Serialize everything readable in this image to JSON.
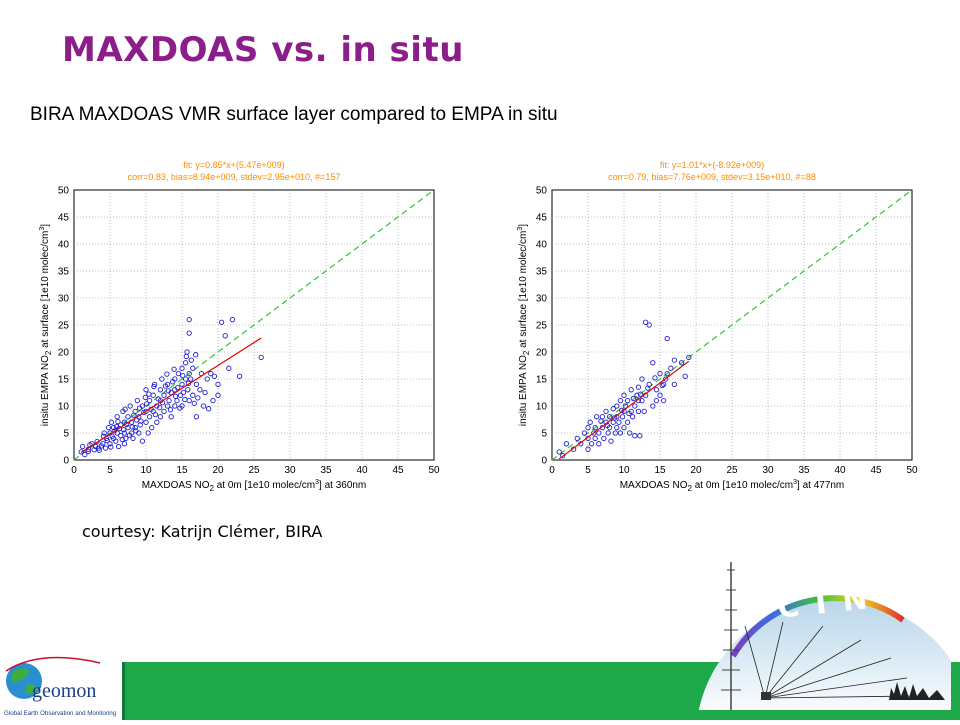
{
  "slide": {
    "title": "MAXDOAS vs. in situ",
    "subtitle": "BIRA MAXDOAS VMR surface layer compared to EMPA in situ",
    "courtesy": "courtesy: Katrijn Clémer, BIRA"
  },
  "logos": {
    "left_text": "geomon",
    "left_caption": "Global Earth Observation and Monitoring",
    "right_text": "CINDI"
  },
  "colors": {
    "title": "#8b1e8b",
    "points": "#2020d0",
    "fit_line": "#e00000",
    "one_to_one": "#40c040",
    "fit_text": "#ff8c00",
    "footer": "#1ea84a"
  },
  "chart_data": [
    {
      "type": "scatter",
      "fit_label": "fit: y=0.85*x+(5.47e+009)",
      "stats_label": "corr=0.83, bias=8.94e+009, stdev=2.95e+010, #=157",
      "xlabel": {
        "pre": "MAXDOAS NO",
        "sub": "2",
        "mid": " at 0m [1e10 molec/cm",
        "sup": "3",
        "post": "] at 360nm"
      },
      "ylabel": {
        "pre": "insitu EMPA NO",
        "sub": "2",
        "mid": " at surface [1e10 molec/cm",
        "sup": "3",
        "post": "]"
      },
      "xlim": [
        0,
        50
      ],
      "ylim": [
        0,
        50
      ],
      "xticks": [
        "0",
        "5",
        "10",
        "15",
        "20",
        "25",
        "30",
        "35",
        "40",
        "45",
        "50"
      ],
      "yticks": [
        "0",
        "5",
        "10",
        "15",
        "20",
        "25",
        "30",
        "35",
        "40",
        "45",
        "50"
      ],
      "grid": true,
      "one_to_one": [
        [
          0,
          0
        ],
        [
          50,
          50
        ]
      ],
      "fit_line": [
        [
          1,
          1.4
        ],
        [
          26,
          22.6
        ]
      ],
      "points": [
        [
          1,
          1.5
        ],
        [
          1.2,
          2.5
        ],
        [
          1.5,
          1
        ],
        [
          2,
          2
        ],
        [
          2.5,
          3
        ],
        [
          3,
          2.5
        ],
        [
          3.5,
          1.8
        ],
        [
          4,
          3
        ],
        [
          4.2,
          5
        ],
        [
          4.5,
          4
        ],
        [
          4.8,
          6
        ],
        [
          5,
          3
        ],
        [
          5,
          5
        ],
        [
          5.2,
          7
        ],
        [
          5.5,
          4
        ],
        [
          5.5,
          6
        ],
        [
          5.8,
          3.5
        ],
        [
          6,
          5
        ],
        [
          6,
          8
        ],
        [
          6.2,
          2.5
        ],
        [
          6.5,
          4.5
        ],
        [
          6.5,
          6.5
        ],
        [
          6.8,
          9
        ],
        [
          7,
          3
        ],
        [
          7,
          5
        ],
        [
          7,
          7
        ],
        [
          7.2,
          4
        ],
        [
          7.5,
          6
        ],
        [
          7.5,
          8
        ],
        [
          7.8,
          10
        ],
        [
          8,
          5
        ],
        [
          8,
          7
        ],
        [
          8.2,
          4
        ],
        [
          8.5,
          6
        ],
        [
          8.5,
          9
        ],
        [
          8.8,
          11
        ],
        [
          9,
          5
        ],
        [
          9,
          8
        ],
        [
          9.2,
          6.5
        ],
        [
          9.5,
          10
        ],
        [
          9.5,
          3.5
        ],
        [
          10,
          7
        ],
        [
          10,
          9
        ],
        [
          10,
          13
        ],
        [
          10.3,
          5
        ],
        [
          10.5,
          8
        ],
        [
          10.5,
          11
        ],
        [
          10.8,
          6
        ],
        [
          11,
          9
        ],
        [
          11,
          12
        ],
        [
          11.2,
          14
        ],
        [
          11.5,
          7
        ],
        [
          11.5,
          10
        ],
        [
          12,
          8
        ],
        [
          12,
          11
        ],
        [
          12,
          13
        ],
        [
          12.2,
          15
        ],
        [
          12.5,
          9
        ],
        [
          12.5,
          12
        ],
        [
          13,
          10
        ],
        [
          13,
          14
        ],
        [
          13.2,
          11
        ],
        [
          13.5,
          12.5
        ],
        [
          13.5,
          8
        ],
        [
          14,
          10
        ],
        [
          14,
          13
        ],
        [
          14,
          15
        ],
        [
          14.3,
          11
        ],
        [
          14.5,
          16
        ],
        [
          14.8,
          12
        ],
        [
          15,
          10
        ],
        [
          15,
          14
        ],
        [
          15,
          17
        ],
        [
          15.2,
          12.5
        ],
        [
          15.5,
          15
        ],
        [
          15.5,
          18
        ],
        [
          15.7,
          20
        ],
        [
          15.8,
          13
        ],
        [
          16,
          11
        ],
        [
          16,
          16
        ],
        [
          16,
          23.5
        ],
        [
          16,
          26
        ],
        [
          16.2,
          15
        ],
        [
          16.5,
          12
        ],
        [
          16.5,
          17
        ],
        [
          17,
          14
        ],
        [
          17,
          8
        ],
        [
          17.5,
          13
        ],
        [
          18,
          10
        ],
        [
          18.5,
          15
        ],
        [
          19,
          16
        ],
        [
          19.5,
          15.5
        ],
        [
          20,
          12
        ],
        [
          20,
          14
        ],
        [
          20.5,
          25.5
        ],
        [
          21,
          23
        ],
        [
          21.5,
          17
        ],
        [
          22,
          26
        ],
        [
          23,
          15.5
        ],
        [
          26,
          19
        ],
        [
          2,
          1.6
        ],
        [
          2.8,
          1.9
        ],
        [
          3.2,
          3.4
        ],
        [
          3.8,
          2.6
        ],
        [
          4.4,
          2.2
        ],
        [
          4.6,
          3.6
        ],
        [
          5.3,
          4.4
        ],
        [
          5.6,
          5.4
        ],
        [
          5.9,
          6.2
        ],
        [
          6.3,
          5.8
        ],
        [
          6.7,
          3.8
        ],
        [
          6.9,
          5.6
        ],
        [
          7.3,
          6.6
        ],
        [
          7.7,
          4.6
        ],
        [
          8.1,
          6.1
        ],
        [
          8.3,
          8.3
        ],
        [
          8.7,
          7.4
        ],
        [
          9.1,
          9.6
        ],
        [
          9.3,
          7.2
        ],
        [
          9.7,
          8.8
        ],
        [
          10.1,
          10.4
        ],
        [
          10.4,
          12.2
        ],
        [
          10.7,
          9.4
        ],
        [
          11.3,
          8.4
        ],
        [
          11.7,
          11.3
        ],
        [
          11.9,
          9.7
        ],
        [
          12.3,
          10.6
        ],
        [
          12.7,
          13.7
        ],
        [
          13.1,
          12.8
        ],
        [
          13.4,
          9.3
        ],
        [
          13.7,
          14.5
        ],
        [
          14.1,
          11.8
        ],
        [
          14.4,
          13.4
        ],
        [
          14.7,
          9.6
        ],
        [
          15.1,
          15.6
        ],
        [
          15.4,
          11.2
        ],
        [
          15.6,
          19.2
        ],
        [
          15.9,
          14.2
        ],
        [
          16.3,
          18.5
        ],
        [
          16.7,
          10.5
        ],
        [
          17.2,
          11.5
        ],
        [
          17.7,
          16
        ],
        [
          18.2,
          12.5
        ],
        [
          18.7,
          9.5
        ],
        [
          19.3,
          11
        ],
        [
          2.2,
          2.8
        ],
        [
          3.4,
          2.2
        ],
        [
          4.1,
          4.4
        ],
        [
          5.1,
          2.4
        ],
        [
          6.1,
          7.1
        ],
        [
          7.1,
          9.4
        ],
        [
          8.6,
          5.4
        ],
        [
          9.9,
          11.6
        ],
        [
          11.1,
          13.6
        ],
        [
          12.9,
          15.9
        ],
        [
          13.9,
          16.8
        ],
        [
          16.9,
          19.5
        ]
      ]
    },
    {
      "type": "scatter",
      "fit_label": "fit: y=1.01*x+(-8.92e+009)",
      "stats_label": "corr=0.79, bias=7.76e+009, stdev=3.15e+010, #=88",
      "xlabel": {
        "pre": "MAXDOAS NO",
        "sub": "2",
        "mid": " at 0m [1e10 molec/cm",
        "sup": "3",
        "post": "] at 477nm"
      },
      "ylabel": {
        "pre": "insitu EMPA NO",
        "sub": "2",
        "mid": " at surface [1e10 molec/cm",
        "sup": "3",
        "post": "]"
      },
      "xlim": [
        0,
        50
      ],
      "ylim": [
        0,
        50
      ],
      "xticks": [
        "0",
        "5",
        "10",
        "15",
        "20",
        "25",
        "30",
        "35",
        "40",
        "45",
        "50"
      ],
      "yticks": [
        "0",
        "5",
        "10",
        "15",
        "20",
        "25",
        "30",
        "35",
        "40",
        "45",
        "50"
      ],
      "grid": true,
      "one_to_one": [
        [
          0,
          0
        ],
        [
          50,
          50
        ]
      ],
      "fit_line": [
        [
          1,
          0.2
        ],
        [
          19,
          18.3
        ]
      ],
      "points": [
        [
          1,
          1.5
        ],
        [
          1.5,
          0.8
        ],
        [
          2,
          3
        ],
        [
          3,
          2
        ],
        [
          3.5,
          4
        ],
        [
          4,
          3
        ],
        [
          4.5,
          5
        ],
        [
          5,
          2
        ],
        [
          5,
          4
        ],
        [
          5,
          6
        ],
        [
          5.3,
          7
        ],
        [
          5.5,
          3
        ],
        [
          5.8,
          5
        ],
        [
          6,
          4
        ],
        [
          6,
          6
        ],
        [
          6.2,
          8
        ],
        [
          6.5,
          5
        ],
        [
          6.5,
          3
        ],
        [
          7,
          6
        ],
        [
          7,
          8
        ],
        [
          7.2,
          4
        ],
        [
          7.5,
          7
        ],
        [
          7.5,
          9
        ],
        [
          7.8,
          5
        ],
        [
          8,
          6
        ],
        [
          8,
          8
        ],
        [
          8.2,
          3.5
        ],
        [
          8.5,
          7
        ],
        [
          8.5,
          9.5
        ],
        [
          8.8,
          5
        ],
        [
          9,
          6
        ],
        [
          9,
          8
        ],
        [
          9,
          10
        ],
        [
          9.3,
          7
        ],
        [
          9.5,
          5
        ],
        [
          9.5,
          11
        ],
        [
          9.8,
          8
        ],
        [
          10,
          6
        ],
        [
          10,
          9
        ],
        [
          10,
          12
        ],
        [
          10.2,
          10
        ],
        [
          10.5,
          7
        ],
        [
          10.5,
          11
        ],
        [
          10.8,
          5
        ],
        [
          11,
          9
        ],
        [
          11,
          13
        ],
        [
          11.2,
          8
        ],
        [
          11.5,
          10
        ],
        [
          11.5,
          4.5
        ],
        [
          11.8,
          12
        ],
        [
          12,
          9
        ],
        [
          12,
          11
        ],
        [
          12,
          13.5
        ],
        [
          12.2,
          4.5
        ],
        [
          12.5,
          11
        ],
        [
          12.5,
          15
        ],
        [
          12.8,
          9
        ],
        [
          13,
          12
        ],
        [
          13,
          25.5
        ],
        [
          13.5,
          25
        ],
        [
          13.5,
          14
        ],
        [
          14,
          10
        ],
        [
          14,
          18
        ],
        [
          14.5,
          13
        ],
        [
          14.5,
          11
        ],
        [
          15,
          12
        ],
        [
          15,
          16
        ],
        [
          15.5,
          14
        ],
        [
          15.5,
          11
        ],
        [
          15.8,
          15
        ],
        [
          16,
          16
        ],
        [
          16,
          22.5
        ],
        [
          16.5,
          17
        ],
        [
          17,
          14
        ],
        [
          17,
          18.5
        ],
        [
          18,
          18
        ],
        [
          18.5,
          15.5
        ],
        [
          19,
          19
        ],
        [
          6.8,
          7.2
        ],
        [
          7.7,
          6.4
        ],
        [
          8.7,
          7.8
        ],
        [
          9.7,
          9.2
        ],
        [
          10.7,
          8.6
        ],
        [
          11.3,
          11.4
        ],
        [
          12.3,
          12.2
        ],
        [
          13.3,
          13.3
        ],
        [
          14.3,
          15.2
        ],
        [
          15.3,
          13.8
        ]
      ]
    }
  ]
}
